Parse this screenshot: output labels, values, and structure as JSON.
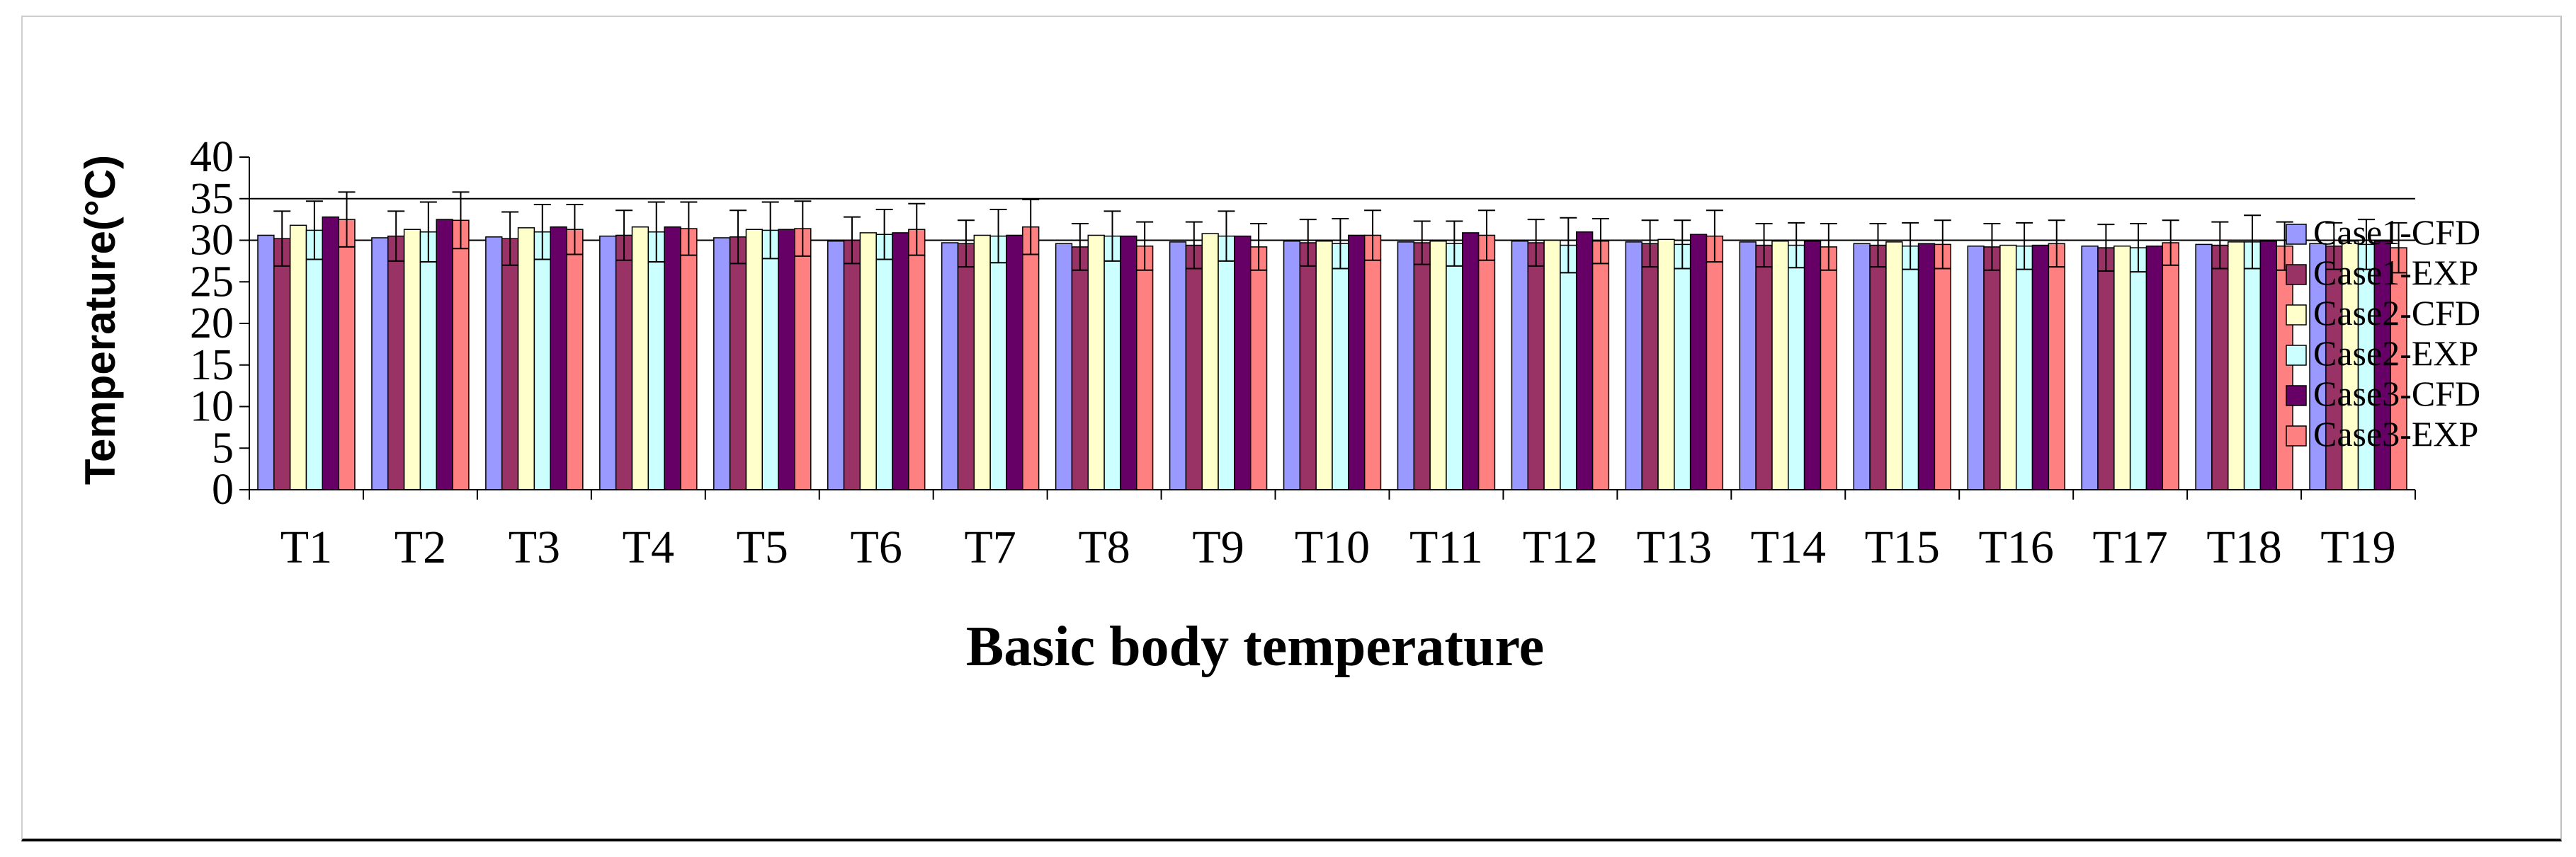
{
  "chart_data": {
    "type": "bar",
    "xlabel": "Basic body temperature",
    "ylabel": "Temperature(°C)",
    "ylim": [
      0,
      40
    ],
    "yticks": [
      0,
      5,
      10,
      15,
      20,
      25,
      30,
      35,
      40
    ],
    "grid": "horizontal major gridlines at 30 and 35",
    "legend_position": "right",
    "error_bars": true,
    "categories": [
      "T1",
      "T2",
      "T3",
      "T4",
      "T5",
      "T6",
      "T7",
      "T8",
      "T9",
      "T10",
      "T11",
      "T12",
      "T13",
      "T14",
      "T15",
      "T16",
      "T17",
      "T18",
      "T19"
    ],
    "series": [
      {
        "name": "Case1-CFD",
        "color": "#9999FF",
        "values": [
          30.6,
          30.3,
          30.4,
          30.5,
          30.3,
          29.9,
          29.7,
          29.6,
          29.8,
          29.9,
          29.8,
          29.9,
          29.8,
          29.8,
          29.6,
          29.3,
          29.3,
          29.5,
          29.6
        ],
        "errors": [
          0,
          0,
          0,
          0,
          0,
          0,
          0,
          0,
          0,
          0,
          0,
          0,
          0,
          0,
          0,
          0,
          0,
          0,
          0
        ]
      },
      {
        "name": "Case1-EXP",
        "color": "#993366",
        "values": [
          30.2,
          30.5,
          30.2,
          30.6,
          30.4,
          30.0,
          29.6,
          29.2,
          29.4,
          29.7,
          29.7,
          29.7,
          29.6,
          29.4,
          29.4,
          29.2,
          29.1,
          29.4,
          29.3
        ],
        "errors": [
          3.3,
          3.0,
          3.2,
          3.0,
          3.2,
          2.8,
          2.8,
          2.8,
          2.8,
          2.8,
          2.6,
          2.8,
          2.8,
          2.6,
          2.6,
          2.8,
          2.8,
          2.8,
          2.8
        ]
      },
      {
        "name": "Case2-CFD",
        "color": "#FFFFCC",
        "values": [
          31.8,
          31.3,
          31.5,
          31.6,
          31.3,
          30.9,
          30.6,
          30.6,
          30.8,
          29.9,
          29.9,
          30.0,
          30.1,
          29.9,
          29.8,
          29.4,
          29.3,
          29.8,
          29.9
        ],
        "errors": [
          0,
          0,
          0,
          0,
          0,
          0,
          0,
          0,
          0,
          0,
          0,
          0,
          0,
          0,
          0,
          0,
          0,
          0,
          0
        ]
      },
      {
        "name": "Case2-EXP",
        "color": "#CCFFFF",
        "values": [
          31.2,
          31.0,
          31.0,
          31.0,
          31.2,
          30.7,
          30.5,
          30.5,
          30.5,
          29.6,
          29.6,
          29.4,
          29.5,
          29.4,
          29.3,
          29.3,
          29.1,
          29.8,
          29.5
        ],
        "errors": [
          3.5,
          3.6,
          3.3,
          3.6,
          3.4,
          3.0,
          3.2,
          3.0,
          3.0,
          3.0,
          2.7,
          3.3,
          2.9,
          2.7,
          2.8,
          2.8,
          2.9,
          3.2,
          3.0
        ]
      },
      {
        "name": "Case3-CFD",
        "color": "#660066",
        "values": [
          32.8,
          32.5,
          31.6,
          31.6,
          31.3,
          30.9,
          30.6,
          30.5,
          30.5,
          30.6,
          30.9,
          31.0,
          30.7,
          29.9,
          29.6,
          29.4,
          29.3,
          29.9,
          29.9
        ],
        "errors": [
          0,
          0,
          0,
          0,
          0,
          0,
          0,
          0,
          0,
          0,
          0,
          0,
          0,
          0,
          0,
          0,
          0,
          0,
          0
        ]
      },
      {
        "name": "Case3-EXP",
        "color": "#FF8080",
        "values": [
          32.5,
          32.4,
          31.3,
          31.4,
          31.4,
          31.3,
          31.6,
          29.3,
          29.2,
          30.6,
          30.6,
          29.9,
          30.5,
          29.2,
          29.5,
          29.6,
          29.7,
          29.3,
          29.1
        ],
        "errors": [
          3.3,
          3.4,
          3.0,
          3.2,
          3.3,
          3.1,
          3.3,
          2.9,
          2.8,
          3.0,
          3.0,
          2.7,
          3.1,
          2.8,
          2.9,
          2.8,
          2.7,
          2.9,
          3.0
        ]
      }
    ]
  }
}
